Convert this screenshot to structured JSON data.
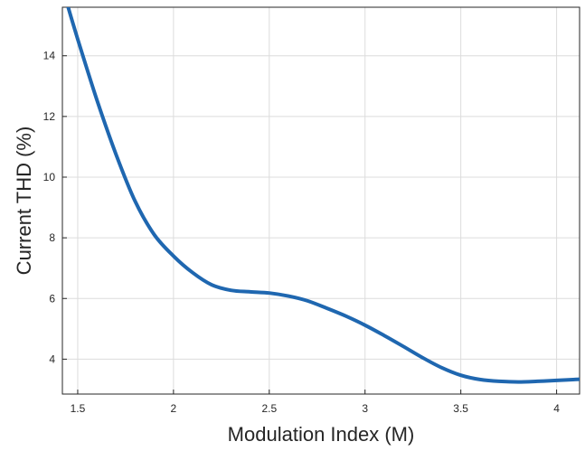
{
  "chart_data": {
    "type": "line",
    "title": "",
    "xlabel": "Modulation Index (M)",
    "ylabel": "Current THD (%)",
    "xlim": [
      1.42,
      4.12
    ],
    "ylim": [
      2.85,
      15.6
    ],
    "grid": true,
    "legend": "none",
    "x_ticks": [
      1.5,
      2,
      2.5,
      3,
      3.5,
      4
    ],
    "x_tick_labels": [
      "1.5",
      "2",
      "2.5",
      "3",
      "3.5",
      "4"
    ],
    "y_ticks": [
      4,
      6,
      8,
      10,
      12,
      14
    ],
    "y_tick_labels": [
      "4",
      "6",
      "8",
      "10",
      "12",
      "14"
    ],
    "series": [
      {
        "color": "#1f67b0",
        "x": [
          1.45,
          1.5,
          1.6,
          1.7,
          1.8,
          1.9,
          2.0,
          2.1,
          2.2,
          2.3,
          2.4,
          2.5,
          2.6,
          2.7,
          2.8,
          2.9,
          3.0,
          3.1,
          3.2,
          3.3,
          3.4,
          3.5,
          3.6,
          3.7,
          3.8,
          3.9,
          4.0,
          4.12
        ],
        "y": [
          15.6,
          14.55,
          12.55,
          10.75,
          9.2,
          8.1,
          7.4,
          6.85,
          6.45,
          6.27,
          6.22,
          6.18,
          6.08,
          5.92,
          5.68,
          5.42,
          5.12,
          4.78,
          4.42,
          4.05,
          3.72,
          3.47,
          3.33,
          3.27,
          3.25,
          3.27,
          3.3,
          3.34
        ]
      }
    ]
  }
}
